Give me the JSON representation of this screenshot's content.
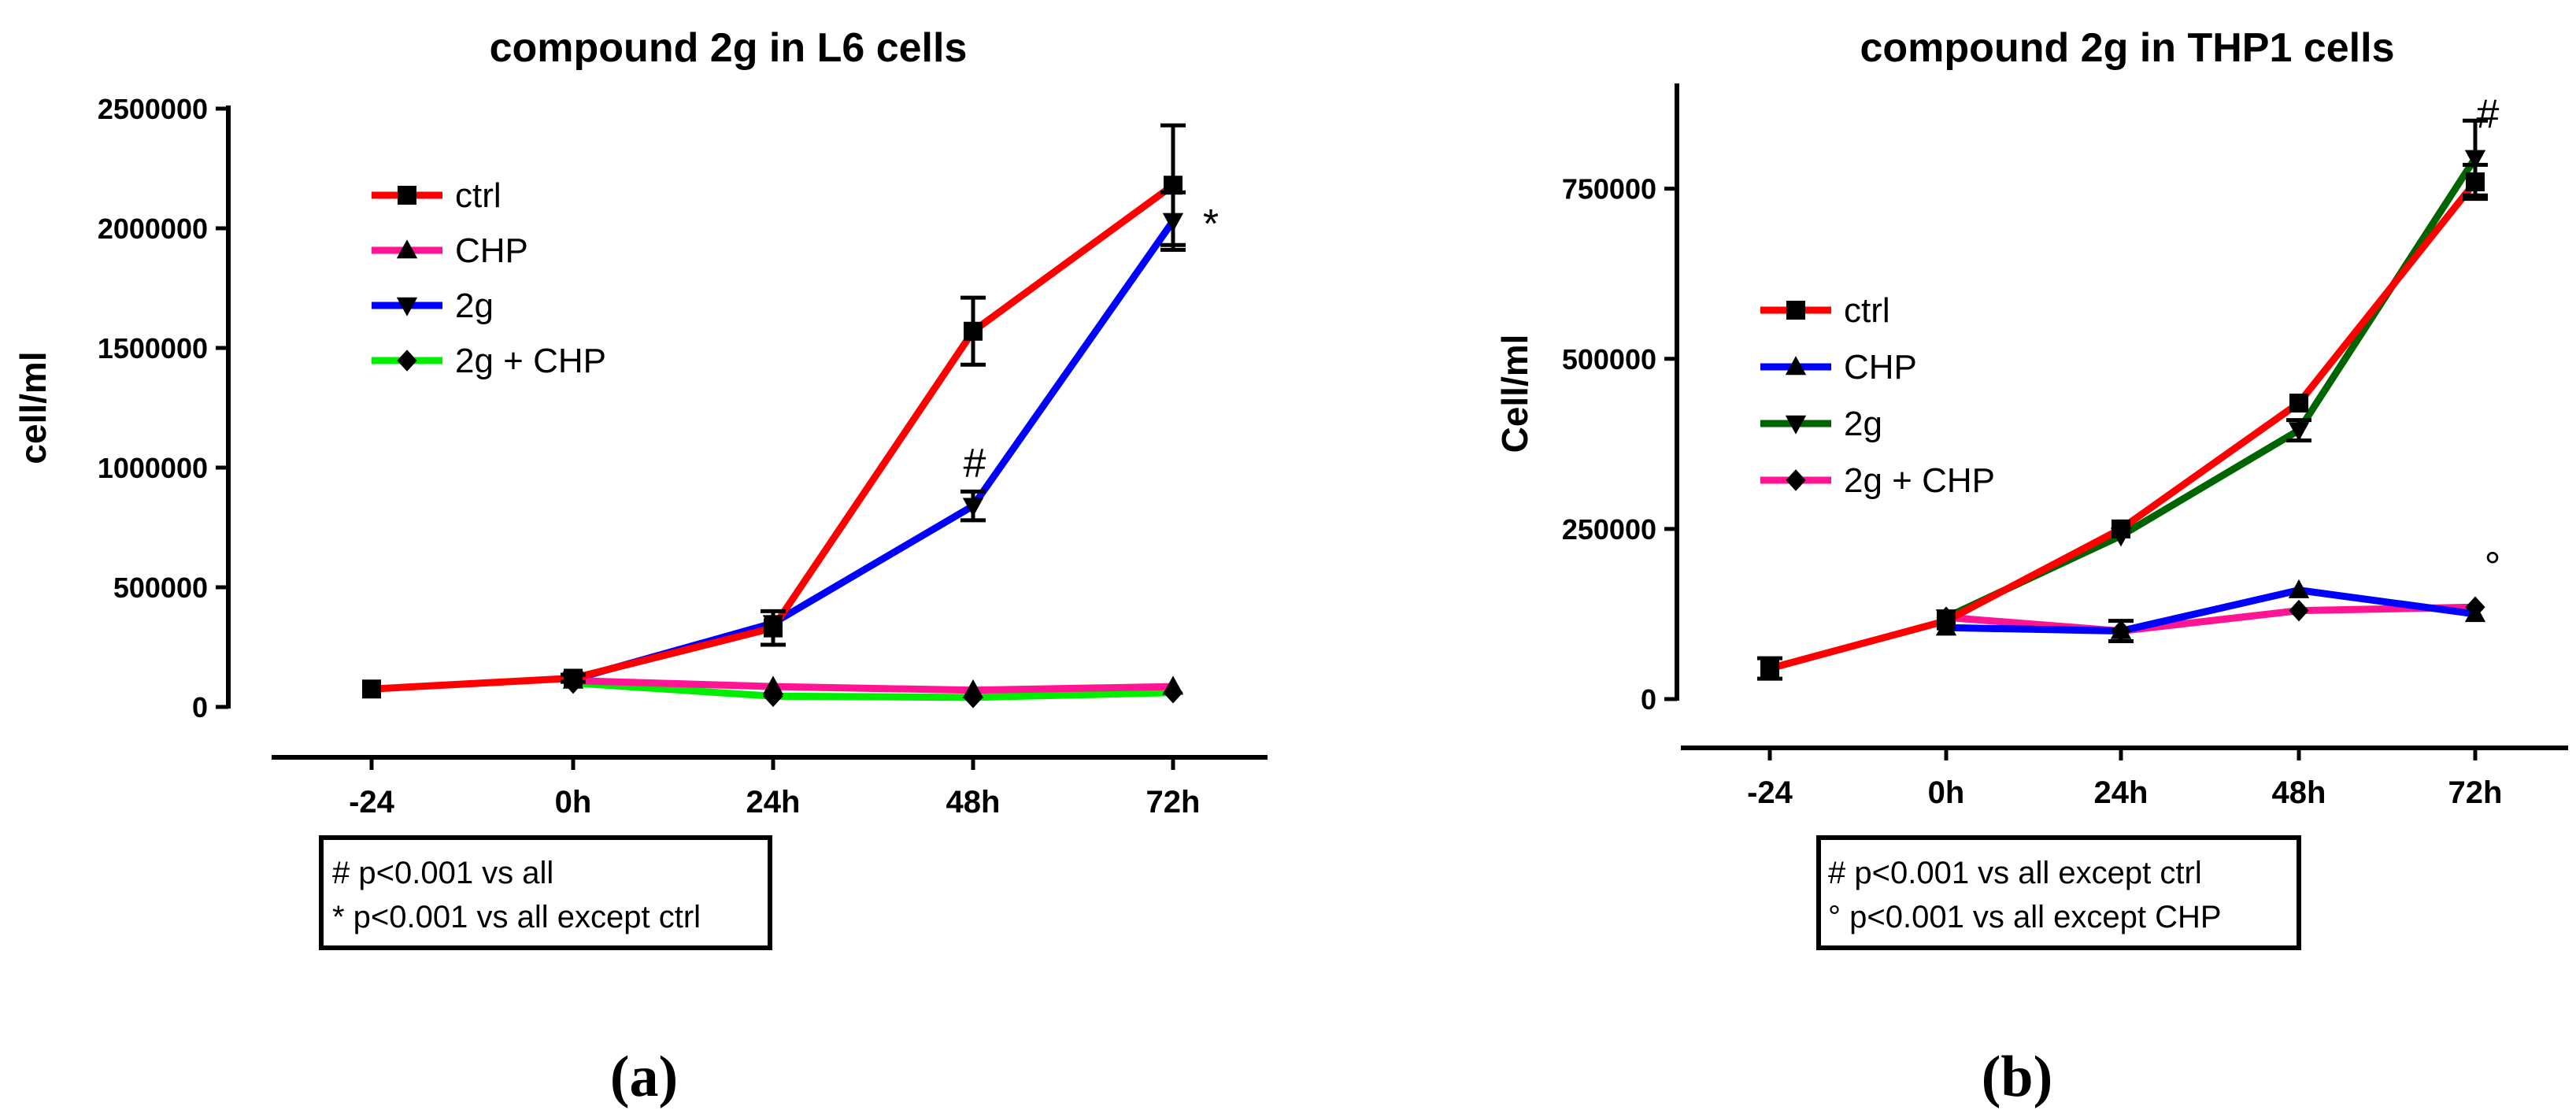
{
  "chart_data": [
    {
      "type": "line",
      "title": "compound 2g in L6 cells",
      "xlabel": "",
      "ylabel": "cell/ml",
      "categories": [
        "-24",
        "0h",
        "24h",
        "48h",
        "72h"
      ],
      "ylim": [
        0,
        2500000
      ],
      "yticks": [
        "0",
        "500000",
        "1000000",
        "1500000",
        "2000000",
        "2500000"
      ],
      "series": [
        {
          "name": "ctrl",
          "color": "#ff0000",
          "marker": "square",
          "values": [
            75000,
            120000,
            330000,
            1570000,
            2180000
          ],
          "errors": [
            0,
            15000,
            70000,
            140000,
            250000
          ]
        },
        {
          "name": "CHP",
          "color": "#ff1493",
          "marker": "triangle-up",
          "values": [
            null,
            110000,
            85000,
            70000,
            85000
          ],
          "errors": [
            0,
            0,
            0,
            0,
            0
          ]
        },
        {
          "name": "2g",
          "color": "#0000ff",
          "marker": "triangle-down",
          "values": [
            null,
            115000,
            350000,
            840000,
            2030000
          ],
          "errors": [
            0,
            0,
            0,
            60000,
            120000
          ]
        },
        {
          "name": "2g + CHP",
          "color": "#00ee00",
          "marker": "diamond",
          "values": [
            null,
            100000,
            45000,
            40000,
            60000
          ],
          "errors": [
            0,
            0,
            0,
            0,
            0
          ]
        }
      ],
      "annotations": [
        {
          "text": "#",
          "category": "48h",
          "value": 1020000
        },
        {
          "text": "*",
          "category": "72h",
          "value": 2020000
        }
      ],
      "legend": "upper-left",
      "notes": [
        "# p<0.001 vs all",
        "* p<0.001 vs all except ctrl"
      ],
      "panel_label": "(a)"
    },
    {
      "type": "line",
      "title": "compound 2g  in THP1 cells",
      "xlabel": "",
      "ylabel": "Cell/ml",
      "categories": [
        "-24",
        "0h",
        "24h",
        "48h",
        "72h"
      ],
      "ylim": [
        0,
        900000
      ],
      "yticks": [
        "0",
        "250000",
        "500000",
        "750000"
      ],
      "series": [
        {
          "name": "ctrl",
          "color": "#ff0000",
          "marker": "square",
          "values": [
            45000,
            115000,
            250000,
            435000,
            760000
          ],
          "errors": [
            15000,
            0,
            0,
            0,
            25000
          ]
        },
        {
          "name": "CHP",
          "color": "#0000ff",
          "marker": "triangle-up",
          "values": [
            null,
            105000,
            100000,
            160000,
            125000
          ],
          "errors": [
            0,
            0,
            0,
            0,
            0
          ]
        },
        {
          "name": "2g",
          "color": "#006400",
          "marker": "triangle-down",
          "values": [
            null,
            120000,
            240000,
            395000,
            795000
          ],
          "errors": [
            0,
            0,
            0,
            15000,
            55000
          ]
        },
        {
          "name": "2g + CHP",
          "color": "#ff1493",
          "marker": "diamond",
          "values": [
            null,
            120000,
            100000,
            130000,
            135000
          ],
          "errors": [
            0,
            0,
            15000,
            0,
            0
          ]
        }
      ],
      "annotations": [
        {
          "text": "#",
          "category": "72h",
          "value": 860000
        },
        {
          "text": "°",
          "category": "72h",
          "value": 195000
        }
      ],
      "legend": "upper-left",
      "notes": [
        "# p<0.001 vs all except ctrl",
        "° p<0.001 vs all except CHP"
      ],
      "panel_label": "(b)"
    }
  ]
}
